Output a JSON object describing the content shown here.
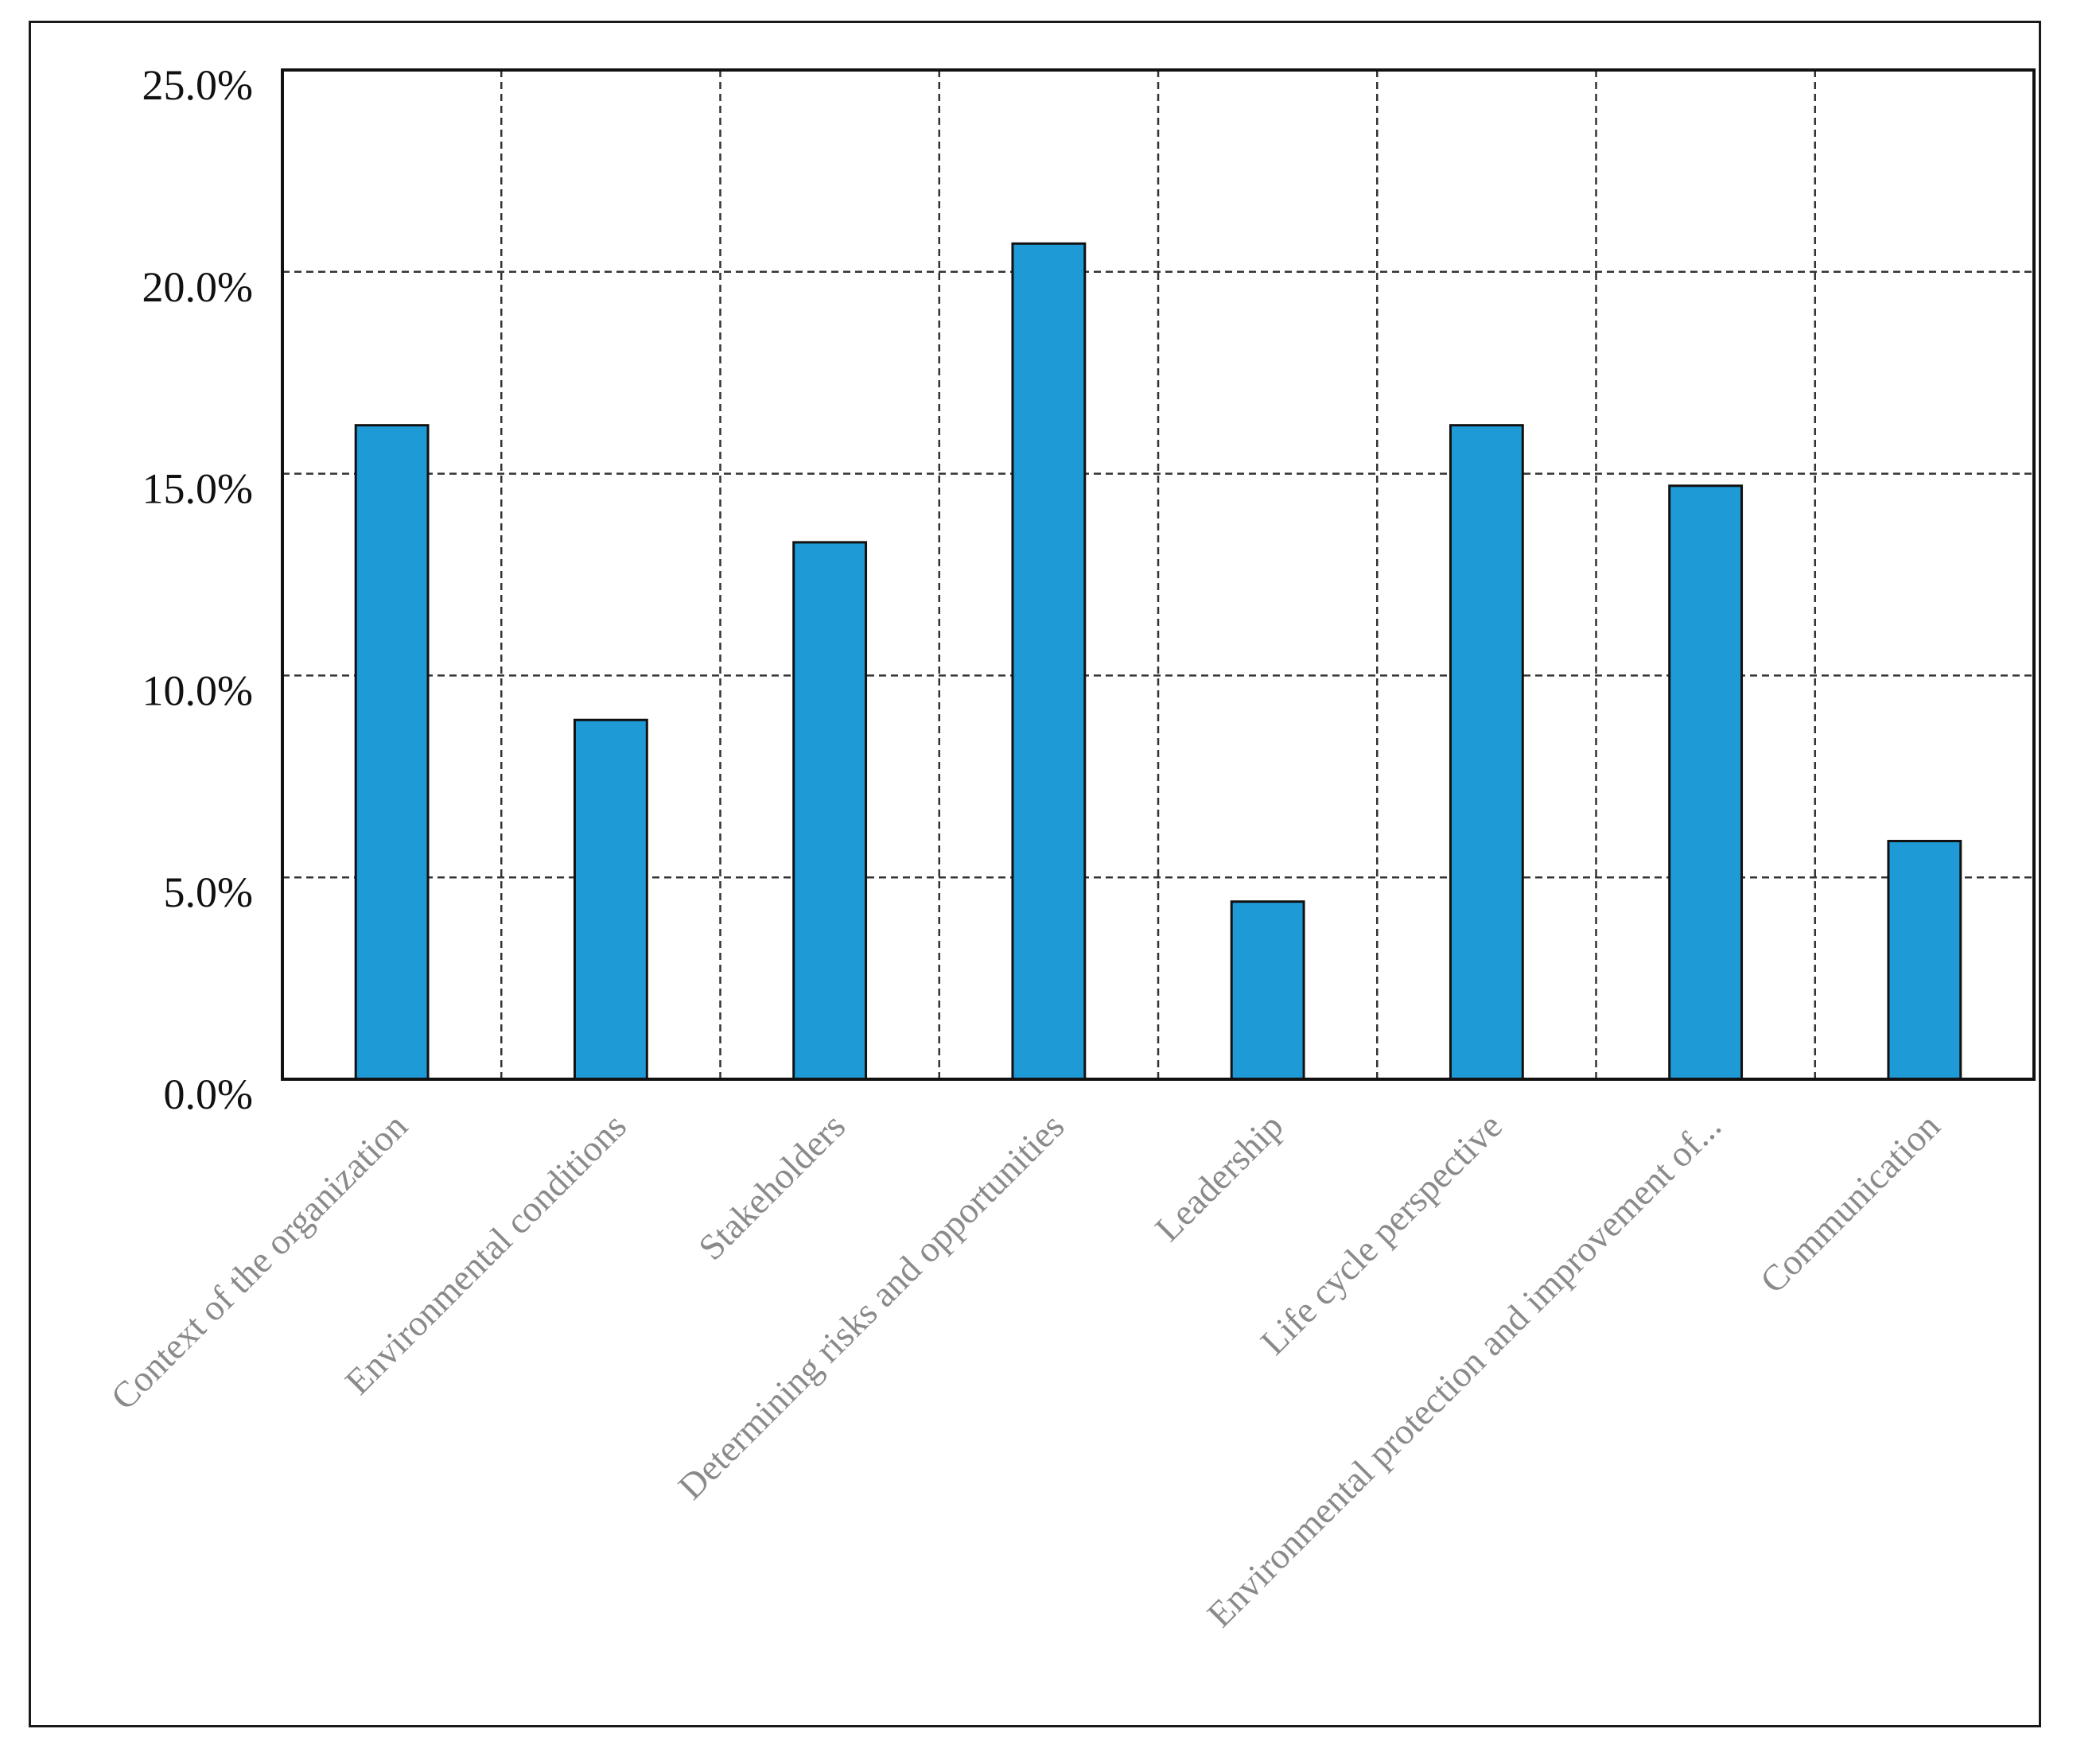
{
  "chart_data": {
    "type": "bar",
    "categories": [
      "Context of the organization",
      "Environmental conditions",
      "Stakeholders",
      "Determining risks and opportunities",
      "Leadership",
      "Life cycle perspective",
      "Environmental protection and improvement of...",
      "Communication"
    ],
    "values": [
      16.2,
      8.9,
      13.3,
      20.7,
      4.4,
      16.2,
      14.7,
      5.9
    ],
    "yticks": [
      "0.0%",
      "5.0%",
      "10.0%",
      "15.0%",
      "20.0%",
      "25.0%"
    ],
    "ylim": [
      0,
      25
    ],
    "grid": true,
    "colors": {
      "bar": "#1e9ad6",
      "bar_edge": "#111111",
      "grid": "#333333"
    }
  }
}
